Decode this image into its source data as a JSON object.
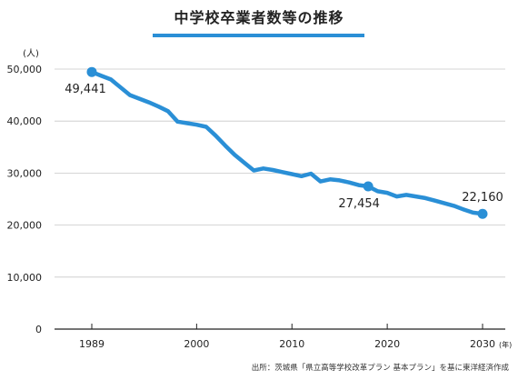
{
  "title": "中学校卒業者数等の推移",
  "source": "出所：茨城県「県立高等学校改革プラン 基本プラン」を基に東洋経済作成",
  "colors": {
    "line": "#2a8fd6",
    "grid": "#c8c8c8",
    "axis": "#222222",
    "text": "#222222"
  },
  "chart_data": {
    "type": "line",
    "title": "中学校卒業者数等の推移",
    "ylabel": "(人)",
    "xlabel": "(年)",
    "ylim": [
      0,
      50000
    ],
    "xlim": [
      1989,
      2030
    ],
    "grid": "horizontal",
    "yticks": [
      {
        "value": 0,
        "label": "0"
      },
      {
        "value": 10000,
        "label": "10,000"
      },
      {
        "value": 20000,
        "label": "20,000"
      },
      {
        "value": 30000,
        "label": "30,000"
      },
      {
        "value": 40000,
        "label": "40,000"
      },
      {
        "value": 50000,
        "label": "50,000"
      }
    ],
    "xticks": [
      {
        "value": 1989,
        "label": "1989"
      },
      {
        "value": 2000,
        "label": "2000"
      },
      {
        "value": 2010,
        "label": "2010"
      },
      {
        "value": 2020,
        "label": "2020"
      },
      {
        "value": 2030,
        "label": "2030"
      }
    ],
    "series": [
      {
        "points": [
          {
            "x": 1989,
            "y": 49441
          },
          {
            "x": 1990,
            "y": 48700
          },
          {
            "x": 1991,
            "y": 48000
          },
          {
            "x": 1993,
            "y": 45000
          },
          {
            "x": 1995,
            "y": 43600
          },
          {
            "x": 1996,
            "y": 42800
          },
          {
            "x": 1997,
            "y": 41900
          },
          {
            "x": 1998,
            "y": 39900
          },
          {
            "x": 1999,
            "y": 39600
          },
          {
            "x": 2000,
            "y": 39300
          },
          {
            "x": 2001,
            "y": 38900
          },
          {
            "x": 2002,
            "y": 37200
          },
          {
            "x": 2003,
            "y": 35300
          },
          {
            "x": 2004,
            "y": 33500
          },
          {
            "x": 2005,
            "y": 32000
          },
          {
            "x": 2006,
            "y": 30500
          },
          {
            "x": 2007,
            "y": 30900
          },
          {
            "x": 2008,
            "y": 30600
          },
          {
            "x": 2009,
            "y": 30200
          },
          {
            "x": 2010,
            "y": 29800
          },
          {
            "x": 2011,
            "y": 29400
          },
          {
            "x": 2012,
            "y": 29900
          },
          {
            "x": 2013,
            "y": 28400
          },
          {
            "x": 2014,
            "y": 28800
          },
          {
            "x": 2015,
            "y": 28600
          },
          {
            "x": 2016,
            "y": 28200
          },
          {
            "x": 2017,
            "y": 27700
          },
          {
            "x": 2018,
            "y": 27454
          },
          {
            "x": 2019,
            "y": 26500
          },
          {
            "x": 2020,
            "y": 26200
          },
          {
            "x": 2021,
            "y": 25500
          },
          {
            "x": 2022,
            "y": 25800
          },
          {
            "x": 2023,
            "y": 25500
          },
          {
            "x": 2024,
            "y": 25200
          },
          {
            "x": 2025,
            "y": 24700
          },
          {
            "x": 2026,
            "y": 24200
          },
          {
            "x": 2027,
            "y": 23700
          },
          {
            "x": 2028,
            "y": 23000
          },
          {
            "x": 2029,
            "y": 22400
          },
          {
            "x": 2030,
            "y": 22160
          }
        ]
      }
    ],
    "annotations": [
      {
        "x": 1989,
        "y": 49441,
        "label": "49,441",
        "placement": "below-left"
      },
      {
        "x": 2018,
        "y": 27454,
        "label": "27,454",
        "placement": "below-left"
      },
      {
        "x": 2030,
        "y": 22160,
        "label": "22,160",
        "placement": "above"
      }
    ]
  }
}
